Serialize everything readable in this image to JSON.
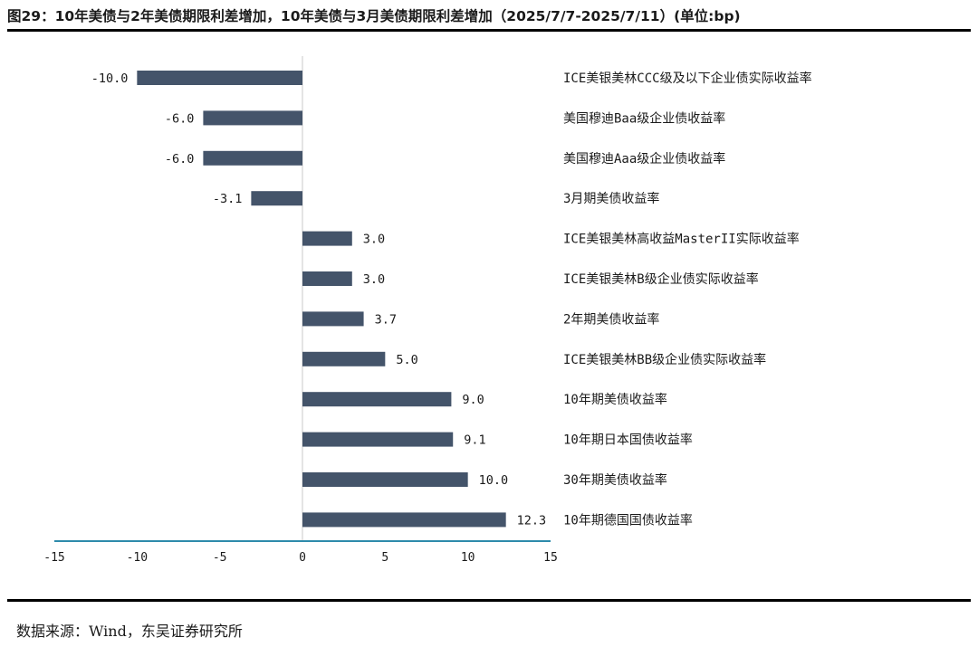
{
  "title": "图29：10年美债与2年美债期限利差增加，10年美债与3月美债期限利差增加（2025/7/7-2025/7/11）(单位:bp)",
  "source": "数据来源：Wind，东吴证券研究所",
  "colors": {
    "bar": "#44546a",
    "axis": "#2e8bab",
    "zero_line": "#c8c8c8"
  },
  "chart_data": {
    "type": "bar",
    "orientation": "horizontal",
    "categories": [
      "ICE美银美林CCC级及以下企业债实际收益率",
      "美国穆迪Baa级企业债收益率",
      "美国穆迪Aaa级企业债收益率",
      "3月期美债收益率",
      "ICE美银美林高收益MasterII实际收益率",
      "ICE美银美林B级企业债实际收益率",
      "2年期美债收益率",
      "ICE美银美林BB级企业债实际收益率",
      "10年期美债收益率",
      "10年期日本国债收益率",
      "30年期美债收益率",
      "10年期德国国债收益率"
    ],
    "values": [
      -10.0,
      -6.0,
      -6.0,
      -3.1,
      3.0,
      3.0,
      3.7,
      5.0,
      9.0,
      9.1,
      10.0,
      12.3
    ],
    "value_labels": [
      "-10.0",
      "-6.0",
      "-6.0",
      "-3.1",
      "3.0",
      "3.0",
      "3.7",
      "5.0",
      "9.0",
      "9.1",
      "10.0",
      "12.3"
    ],
    "xlim": [
      -15,
      15
    ],
    "xticks": [
      -15,
      -10,
      -5,
      0,
      5,
      10,
      15
    ],
    "xtick_labels": [
      "-15",
      "-10",
      "-5",
      "0",
      "5",
      "10",
      "15"
    ],
    "grid": false,
    "legend": "none"
  }
}
